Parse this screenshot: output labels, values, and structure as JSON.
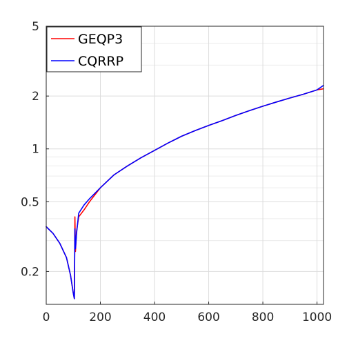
{
  "chart_data": {
    "type": "line",
    "title": "",
    "xlabel": "",
    "ylabel": "",
    "xlim": [
      0,
      1024
    ],
    "ylim": [
      0.13,
      5
    ],
    "yscale": "log",
    "grid": true,
    "legend_position": "top-left",
    "x_ticks": [
      0,
      200,
      400,
      600,
      800,
      1000
    ],
    "x_tick_labels": [
      "0",
      "200",
      "400",
      "600",
      "800",
      "1000"
    ],
    "y_ticks": [
      0.2,
      0.5,
      1,
      2,
      5
    ],
    "y_tick_labels": [
      "0.2",
      "0.5",
      "1",
      "2",
      "5"
    ],
    "series": [
      {
        "name": "GEQP3",
        "color": "#ff0000",
        "x": [
          0,
          25,
          50,
          75,
          90,
          100,
          104,
          106,
          108,
          112,
          120,
          140,
          160,
          200,
          250,
          300,
          350,
          400,
          450,
          500,
          550,
          600,
          650,
          700,
          750,
          800,
          850,
          900,
          950,
          1000,
          1024
        ],
        "y": [
          0.36,
          0.33,
          0.29,
          0.24,
          0.19,
          0.15,
          0.14,
          0.41,
          0.26,
          0.34,
          0.41,
          0.45,
          0.5,
          0.6,
          0.71,
          0.8,
          0.89,
          0.98,
          1.08,
          1.18,
          1.27,
          1.36,
          1.45,
          1.55,
          1.65,
          1.75,
          1.85,
          1.95,
          2.05,
          2.17,
          2.2
        ]
      },
      {
        "name": "CQRRP",
        "color": "#0000ff",
        "x": [
          0,
          25,
          50,
          75,
          90,
          100,
          104,
          106,
          108,
          112,
          120,
          140,
          160,
          200,
          250,
          300,
          350,
          400,
          450,
          500,
          550,
          600,
          650,
          700,
          750,
          800,
          850,
          900,
          950,
          1000,
          1024
        ],
        "y": [
          0.36,
          0.33,
          0.29,
          0.24,
          0.19,
          0.15,
          0.14,
          0.35,
          0.27,
          0.33,
          0.43,
          0.48,
          0.52,
          0.6,
          0.71,
          0.8,
          0.89,
          0.98,
          1.08,
          1.18,
          1.27,
          1.36,
          1.45,
          1.55,
          1.65,
          1.75,
          1.85,
          1.95,
          2.05,
          2.17,
          2.3
        ]
      }
    ]
  }
}
